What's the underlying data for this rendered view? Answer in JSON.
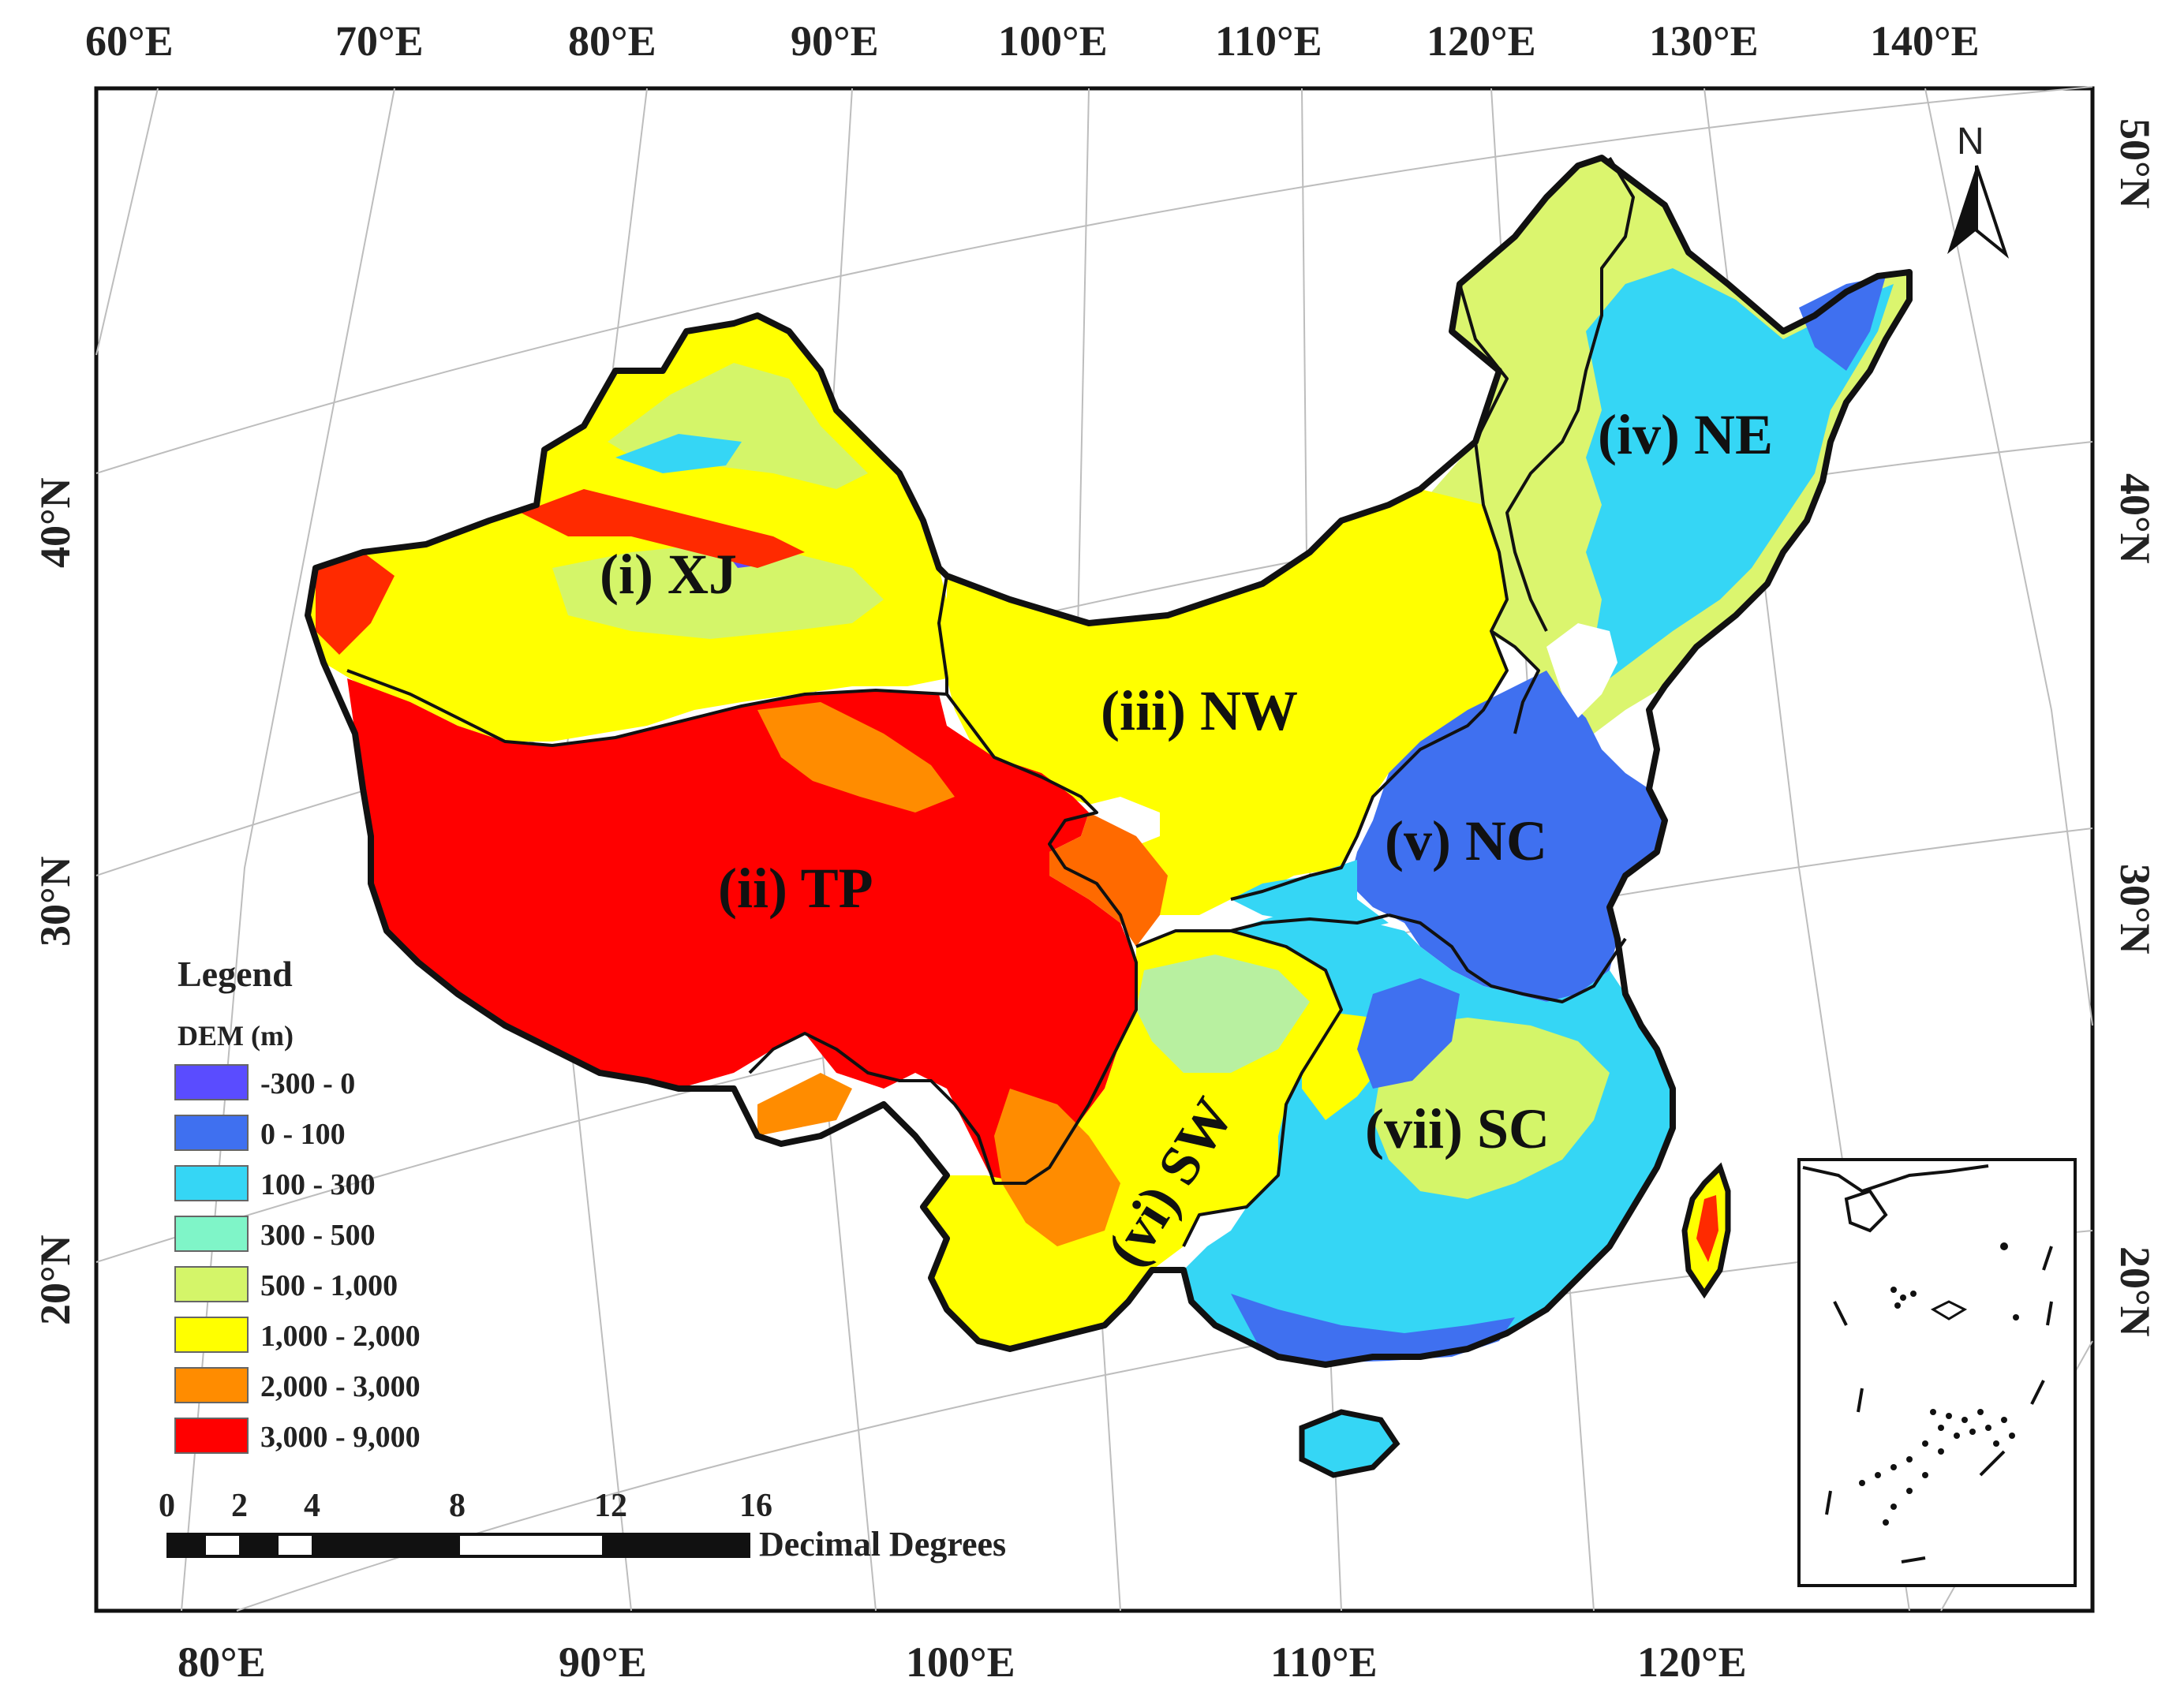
{
  "top_lon_labels": [
    "60°E",
    "70°E",
    "80°E",
    "90°E",
    "100°E",
    "110°E",
    "120°E",
    "130°E",
    "140°E"
  ],
  "bottom_lon_labels": [
    "80°E",
    "90°E",
    "100°E",
    "110°E",
    "120°E"
  ],
  "left_lat_labels": [
    "40°N",
    "30°N",
    "20°N"
  ],
  "right_lat_labels": [
    "50°N",
    "40°N",
    "30°N",
    "20°N"
  ],
  "regions": [
    {
      "id": "xj",
      "label": "(i) XJ"
    },
    {
      "id": "tp",
      "label": "(ii) TP"
    },
    {
      "id": "nw",
      "label": "(iii) NW"
    },
    {
      "id": "ne",
      "label": "(iv) NE"
    },
    {
      "id": "nc",
      "label": "(v) NC"
    },
    {
      "id": "sw",
      "label": "(vi) SW"
    },
    {
      "id": "sc",
      "label": "(vii) SC"
    }
  ],
  "legend": {
    "title": "Legend",
    "subtitle": "DEM (m)",
    "items": [
      {
        "label": "-300 - 0",
        "color": "#5a4cff"
      },
      {
        "label": "0 - 100",
        "color": "#3f70f0"
      },
      {
        "label": "100 - 300",
        "color": "#35d6f5"
      },
      {
        "label": "300 - 500",
        "color": "#7ff5c8"
      },
      {
        "label": "500 - 1,000",
        "color": "#d4f569"
      },
      {
        "label": "1,000 - 2,000",
        "color": "#ffff00"
      },
      {
        "label": "2,000 - 3,000",
        "color": "#ff8c00"
      },
      {
        "label": "3,000 - 9,000",
        "color": "#ff0000"
      }
    ]
  },
  "scale_bar": {
    "ticks": [
      "0",
      "2",
      "4",
      "8",
      "12",
      "16"
    ],
    "unit": "Decimal Degrees"
  },
  "north_arrow": {
    "label": "N",
    "icon": "north-arrow-icon"
  }
}
